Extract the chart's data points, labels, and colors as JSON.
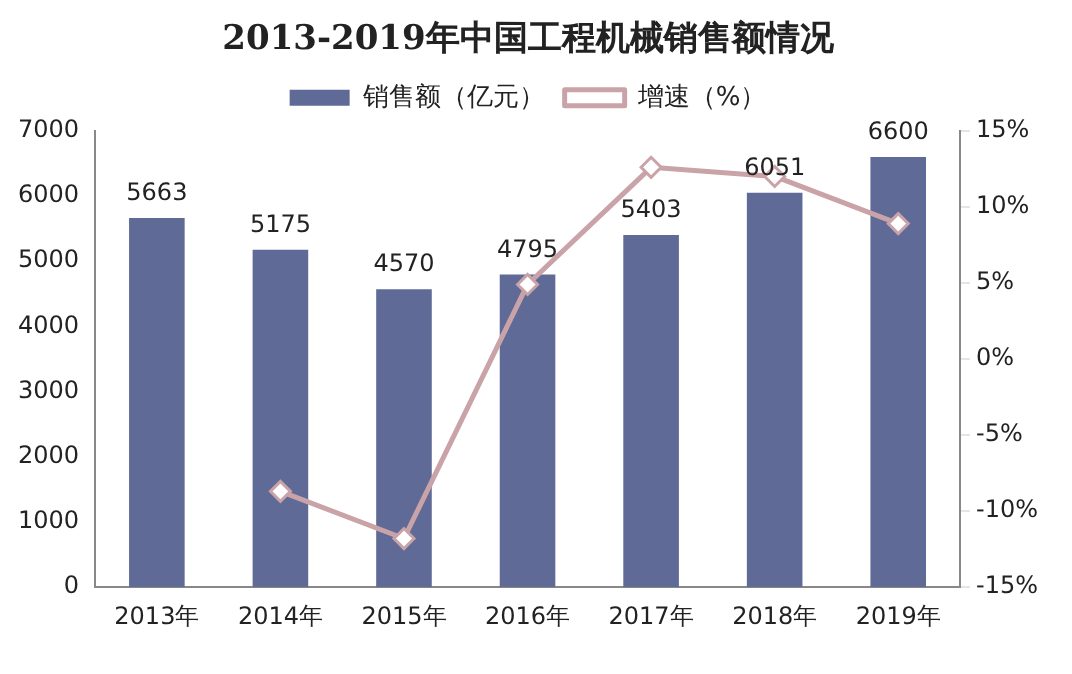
{
  "chart_data": {
    "type": "bar",
    "title": "2013-2019年中国工程机械销售额情况",
    "categories": [
      "2013年",
      "2014年",
      "2015年",
      "2016年",
      "2017年",
      "2018年",
      "2019年"
    ],
    "series": [
      {
        "name": "销售额（亿元）",
        "color": "#5f6b96",
        "values": [
          5663,
          5175,
          4570,
          4795,
          5403,
          6051,
          6600
        ],
        "value_labels": [
          "5663",
          "5175",
          "4570",
          "4795",
          "5403",
          "6051",
          "6600"
        ]
      },
      {
        "name": "增速（%）",
        "type": "line",
        "axis": "y2",
        "color": "#c9a3a8",
        "marker": "diamond",
        "values": [
          null,
          -8.7,
          -11.8,
          4.9,
          12.6,
          12.0,
          8.9
        ]
      }
    ],
    "ylim": [
      0,
      7000
    ],
    "yticks": [
      0,
      1000,
      2000,
      3000,
      4000,
      5000,
      6000,
      7000
    ],
    "y2lim": [
      -15,
      15
    ],
    "y2ticks": [
      {
        "value": -15,
        "label": "-15%"
      },
      {
        "value": -10,
        "label": "-10%"
      },
      {
        "value": -5,
        "label": "-5%"
      },
      {
        "value": 0,
        "label": "0%"
      },
      {
        "value": 5,
        "label": "5%"
      },
      {
        "value": 10,
        "label": "10%"
      },
      {
        "value": 15,
        "label": "15%"
      }
    ],
    "grid": false,
    "legend": "top"
  }
}
